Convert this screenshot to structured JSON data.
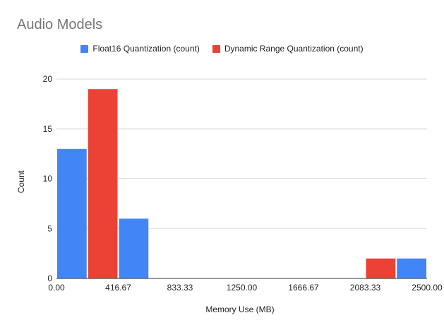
{
  "chart_data": {
    "type": "bar",
    "title": "Audio Models",
    "xlabel": "Memory Use (MB)",
    "ylabel": "Count",
    "x_ticks": [
      "0.00",
      "416.67",
      "833.33",
      "1250.00",
      "1666.67",
      "2083.33",
      "2500.00"
    ],
    "y_ticks": [
      "0",
      "5",
      "10",
      "15",
      "20"
    ],
    "ylim": [
      0,
      21
    ],
    "xlim": [
      0,
      2500
    ],
    "bin_width": 208.33,
    "bin_starts": [
      0,
      208.33,
      416.67,
      625,
      833.33,
      1041.67,
      1250,
      1458.33,
      1666.67,
      1875,
      2083.33,
      2291.67
    ],
    "series": [
      {
        "name": "Float16 Quantization (count)",
        "color": "#4285f4",
        "values": [
          13,
          null,
          6,
          null,
          null,
          null,
          null,
          null,
          null,
          null,
          null,
          2
        ]
      },
      {
        "name": "Dynamic Range Quantization (count)",
        "color": "#ea4335",
        "values": [
          null,
          19,
          null,
          null,
          null,
          null,
          null,
          null,
          null,
          null,
          2,
          null
        ]
      }
    ],
    "grid": true,
    "legend_position": "top"
  }
}
